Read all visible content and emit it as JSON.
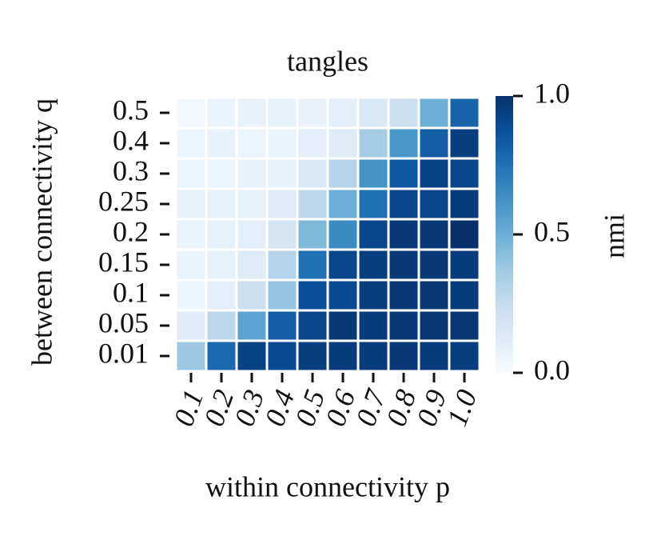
{
  "chart_data": {
    "type": "heatmap",
    "title": "tangles",
    "x_label": "within connectivity p",
    "y_label": "between connectivity q",
    "colorbar_label": "nmi",
    "x_categories": [
      "0.1",
      "0.2",
      "0.3",
      "0.4",
      "0.5",
      "0.6",
      "0.7",
      "0.8",
      "0.9",
      "1.0"
    ],
    "y_categories": [
      "0.5",
      "0.4",
      "0.3",
      "0.25",
      "0.2",
      "0.15",
      "0.1",
      "0.05",
      "0.01"
    ],
    "values": [
      [
        0.02,
        0.06,
        0.07,
        0.08,
        0.07,
        0.09,
        0.15,
        0.22,
        0.5,
        0.8
      ],
      [
        0.05,
        0.07,
        0.05,
        0.06,
        0.1,
        0.12,
        0.35,
        0.6,
        0.82,
        0.95
      ],
      [
        0.05,
        0.05,
        0.07,
        0.08,
        0.15,
        0.3,
        0.62,
        0.85,
        0.93,
        0.92
      ],
      [
        0.08,
        0.08,
        0.08,
        0.12,
        0.28,
        0.5,
        0.75,
        0.92,
        0.92,
        0.96
      ],
      [
        0.06,
        0.08,
        0.1,
        0.18,
        0.45,
        0.65,
        0.92,
        0.97,
        0.97,
        1.0
      ],
      [
        0.06,
        0.08,
        0.12,
        0.3,
        0.75,
        0.92,
        0.95,
        0.97,
        0.97,
        0.96
      ],
      [
        0.05,
        0.1,
        0.22,
        0.4,
        0.88,
        0.9,
        0.95,
        0.97,
        0.97,
        0.96
      ],
      [
        0.12,
        0.28,
        0.55,
        0.82,
        0.92,
        0.97,
        0.96,
        0.97,
        0.98,
        0.98
      ],
      [
        0.38,
        0.78,
        0.93,
        0.9,
        0.95,
        0.96,
        0.96,
        0.97,
        0.96,
        0.95
      ]
    ],
    "colormap": "Blues",
    "zlim": [
      0,
      1
    ],
    "zticks": [
      {
        "value": 0,
        "label": "0.0"
      },
      0.5,
      {
        "value": 1,
        "label": "1.0"
      }
    ]
  }
}
